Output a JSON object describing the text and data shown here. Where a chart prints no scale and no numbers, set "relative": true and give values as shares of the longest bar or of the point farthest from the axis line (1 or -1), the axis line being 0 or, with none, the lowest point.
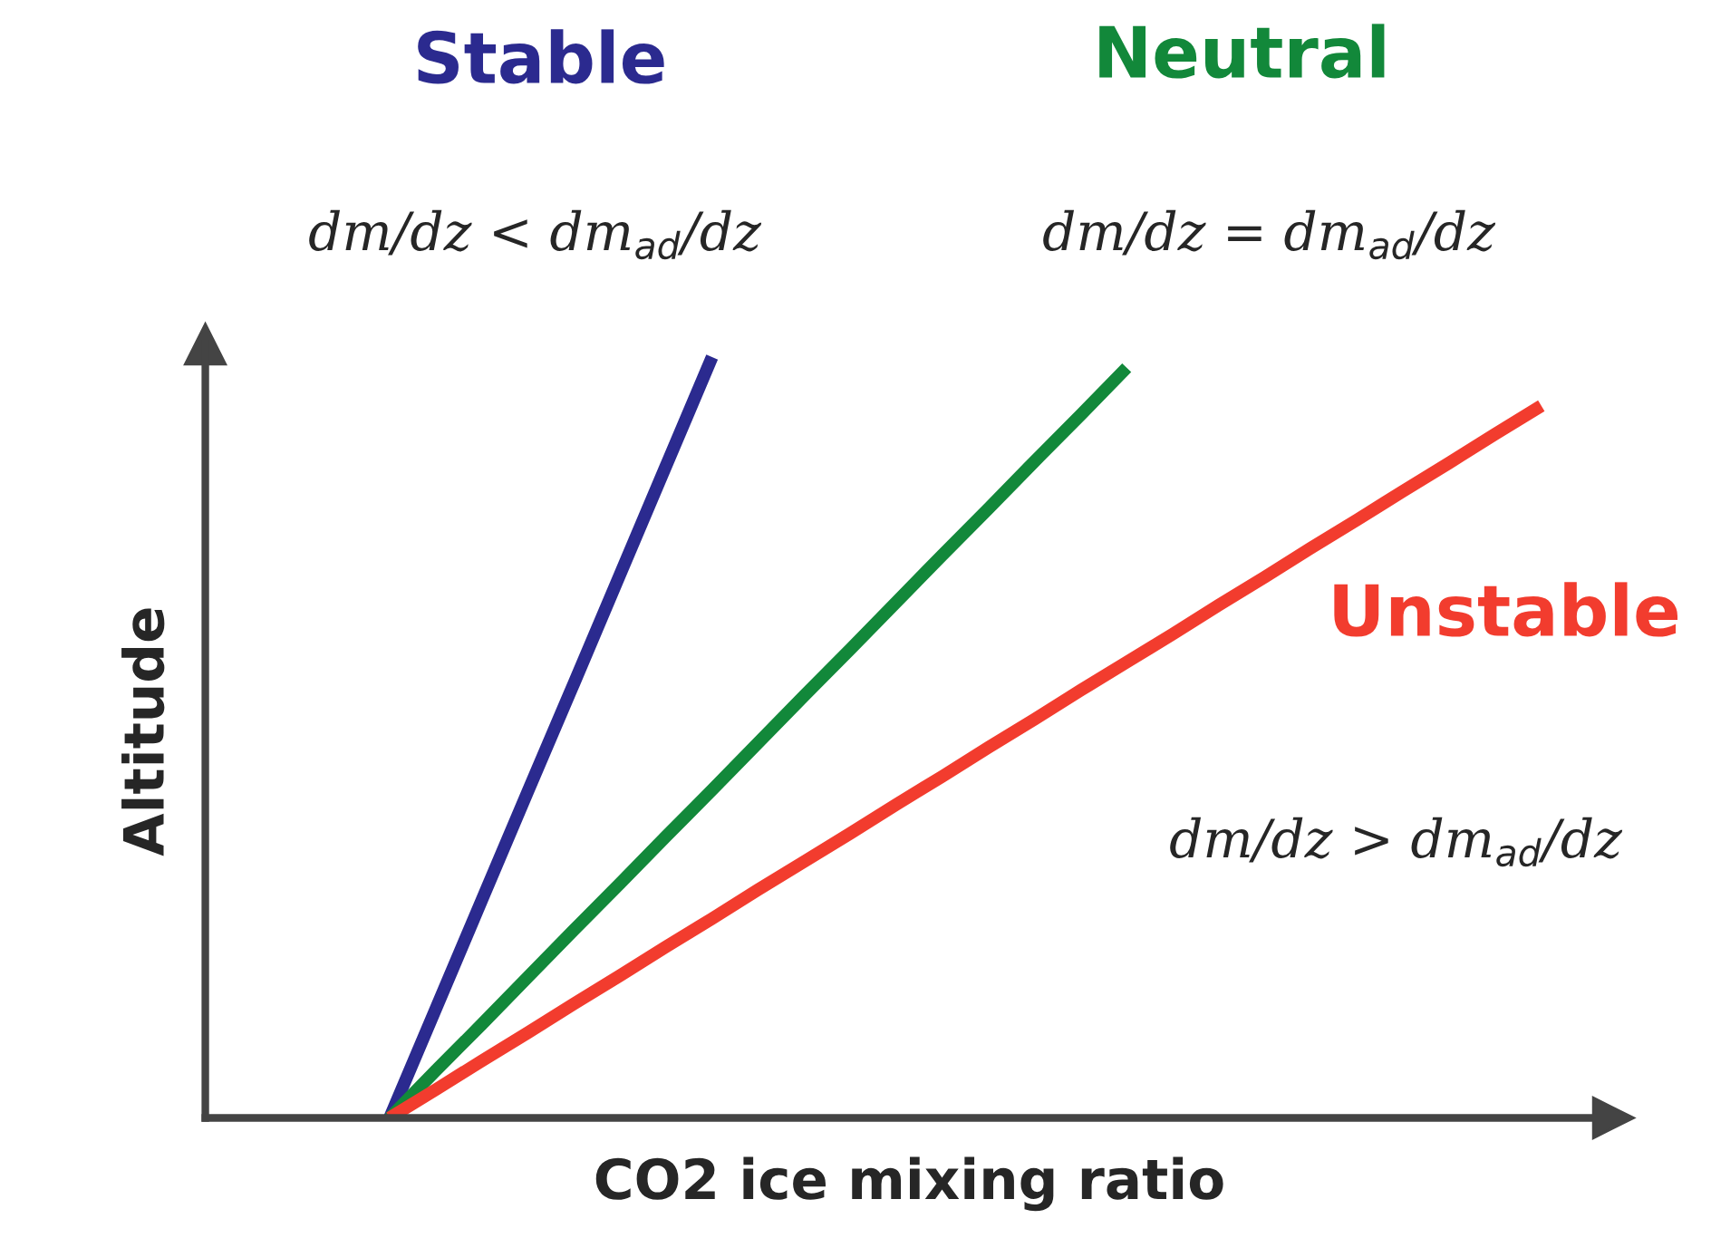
{
  "chart_data": {
    "type": "line",
    "relative": true,
    "xlabel": "CO2 ice mixing ratio",
    "ylabel": "Altitude",
    "grid": false,
    "legend": false,
    "marker": "none",
    "line_style": "solid",
    "categories": [
      null,
      null,
      null,
      null,
      null,
      null,
      null,
      null,
      null,
      null,
      null,
      null,
      null,
      null,
      null,
      null,
      null,
      null,
      null,
      null,
      null,
      null,
      null,
      null,
      null,
      null,
      null,
      null,
      null,
      null
    ],
    "series": [
      {
        "name": "Stable",
        "color": "#2b2a8f",
        "values": [
          null,
          null,
          null,
          null,
          0,
          0.143,
          0.286,
          0.429,
          0.571,
          0.714,
          0.857,
          1,
          null,
          null,
          null,
          null,
          null,
          null,
          null,
          null,
          null,
          null,
          null,
          null,
          null,
          null,
          null,
          null,
          null,
          null
        ]
      },
      {
        "name": "Neutral",
        "color": "#12883a",
        "values": [
          null,
          null,
          null,
          null,
          0,
          0.062,
          0.123,
          0.185,
          0.247,
          0.308,
          0.37,
          0.431,
          0.493,
          0.555,
          0.616,
          0.678,
          0.74,
          0.801,
          0.863,
          0.924,
          0.986,
          null,
          null,
          null,
          null,
          null,
          null,
          null,
          null,
          null
        ]
      },
      {
        "name": "Unstable",
        "color": "#f23c2e",
        "values": [
          null,
          null,
          null,
          null,
          0,
          0.037,
          0.075,
          0.112,
          0.15,
          0.187,
          0.225,
          0.262,
          0.3,
          0.337,
          0.374,
          0.412,
          0.449,
          0.487,
          0.524,
          0.562,
          0.599,
          0.636,
          0.674,
          0.711,
          0.749,
          0.786,
          0.824,
          0.861,
          0.899,
          0.936
        ]
      }
    ],
    "annotations": [
      "dm/dz < dm$_{ad}$/dz",
      "dm/dz = dm$_{ad}$/dz",
      "dm/dz > dm$_{ad}$/dz"
    ]
  }
}
